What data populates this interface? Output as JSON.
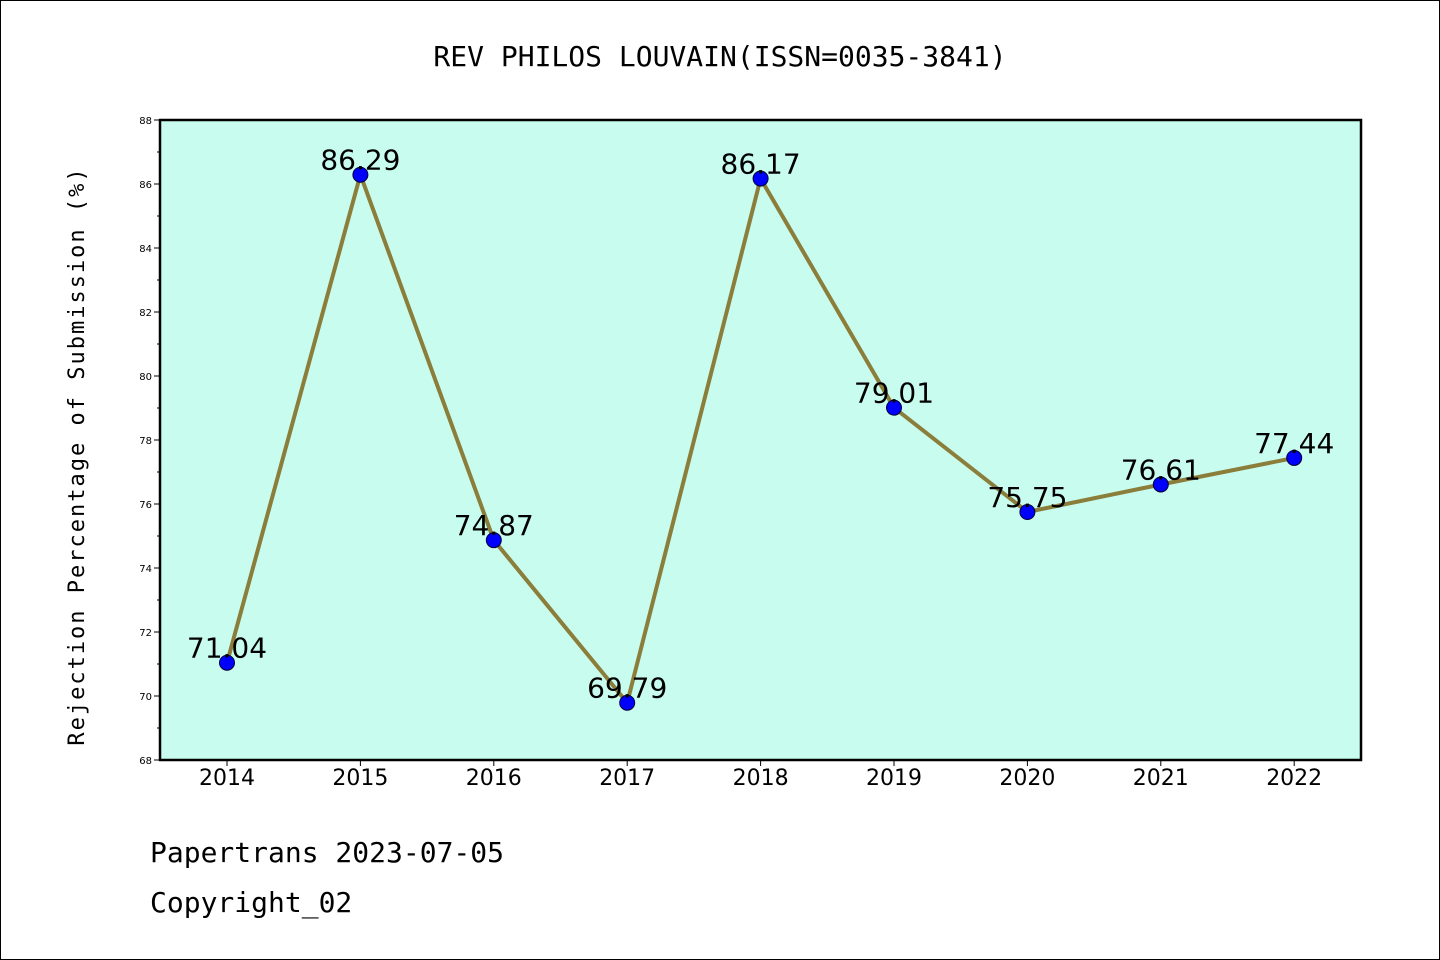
{
  "chart_data": {
    "type": "line",
    "title": "REV PHILOS LOUVAIN(ISSN=0035-3841)",
    "xlabel": "",
    "ylabel": "Rejection Percentage of Submission (%)",
    "categories": [
      "2014",
      "2015",
      "2016",
      "2017",
      "2018",
      "2019",
      "2020",
      "2021",
      "2022"
    ],
    "series": [
      {
        "values": [
          71.04,
          86.29,
          74.87,
          69.79,
          86.17,
          79.01,
          75.75,
          76.61,
          77.44
        ]
      }
    ],
    "data_labels": [
      "71.04",
      "86.29",
      "74.87",
      "69.79",
      "86.17",
      "79.01",
      "75.75",
      "76.61",
      "77.44"
    ],
    "ylim": [
      68,
      88
    ],
    "yticks": [
      "68",
      "70",
      "72",
      "74",
      "76",
      "78",
      "80",
      "82",
      "84",
      "86",
      "88"
    ],
    "grid": false,
    "colors": {
      "plot_background": "#c8fcee",
      "line": "#8b7d3a",
      "marker": "#0000ff"
    }
  },
  "footer": {
    "line1": "Papertrans 2023-07-05",
    "line2": "Copyright_02"
  }
}
